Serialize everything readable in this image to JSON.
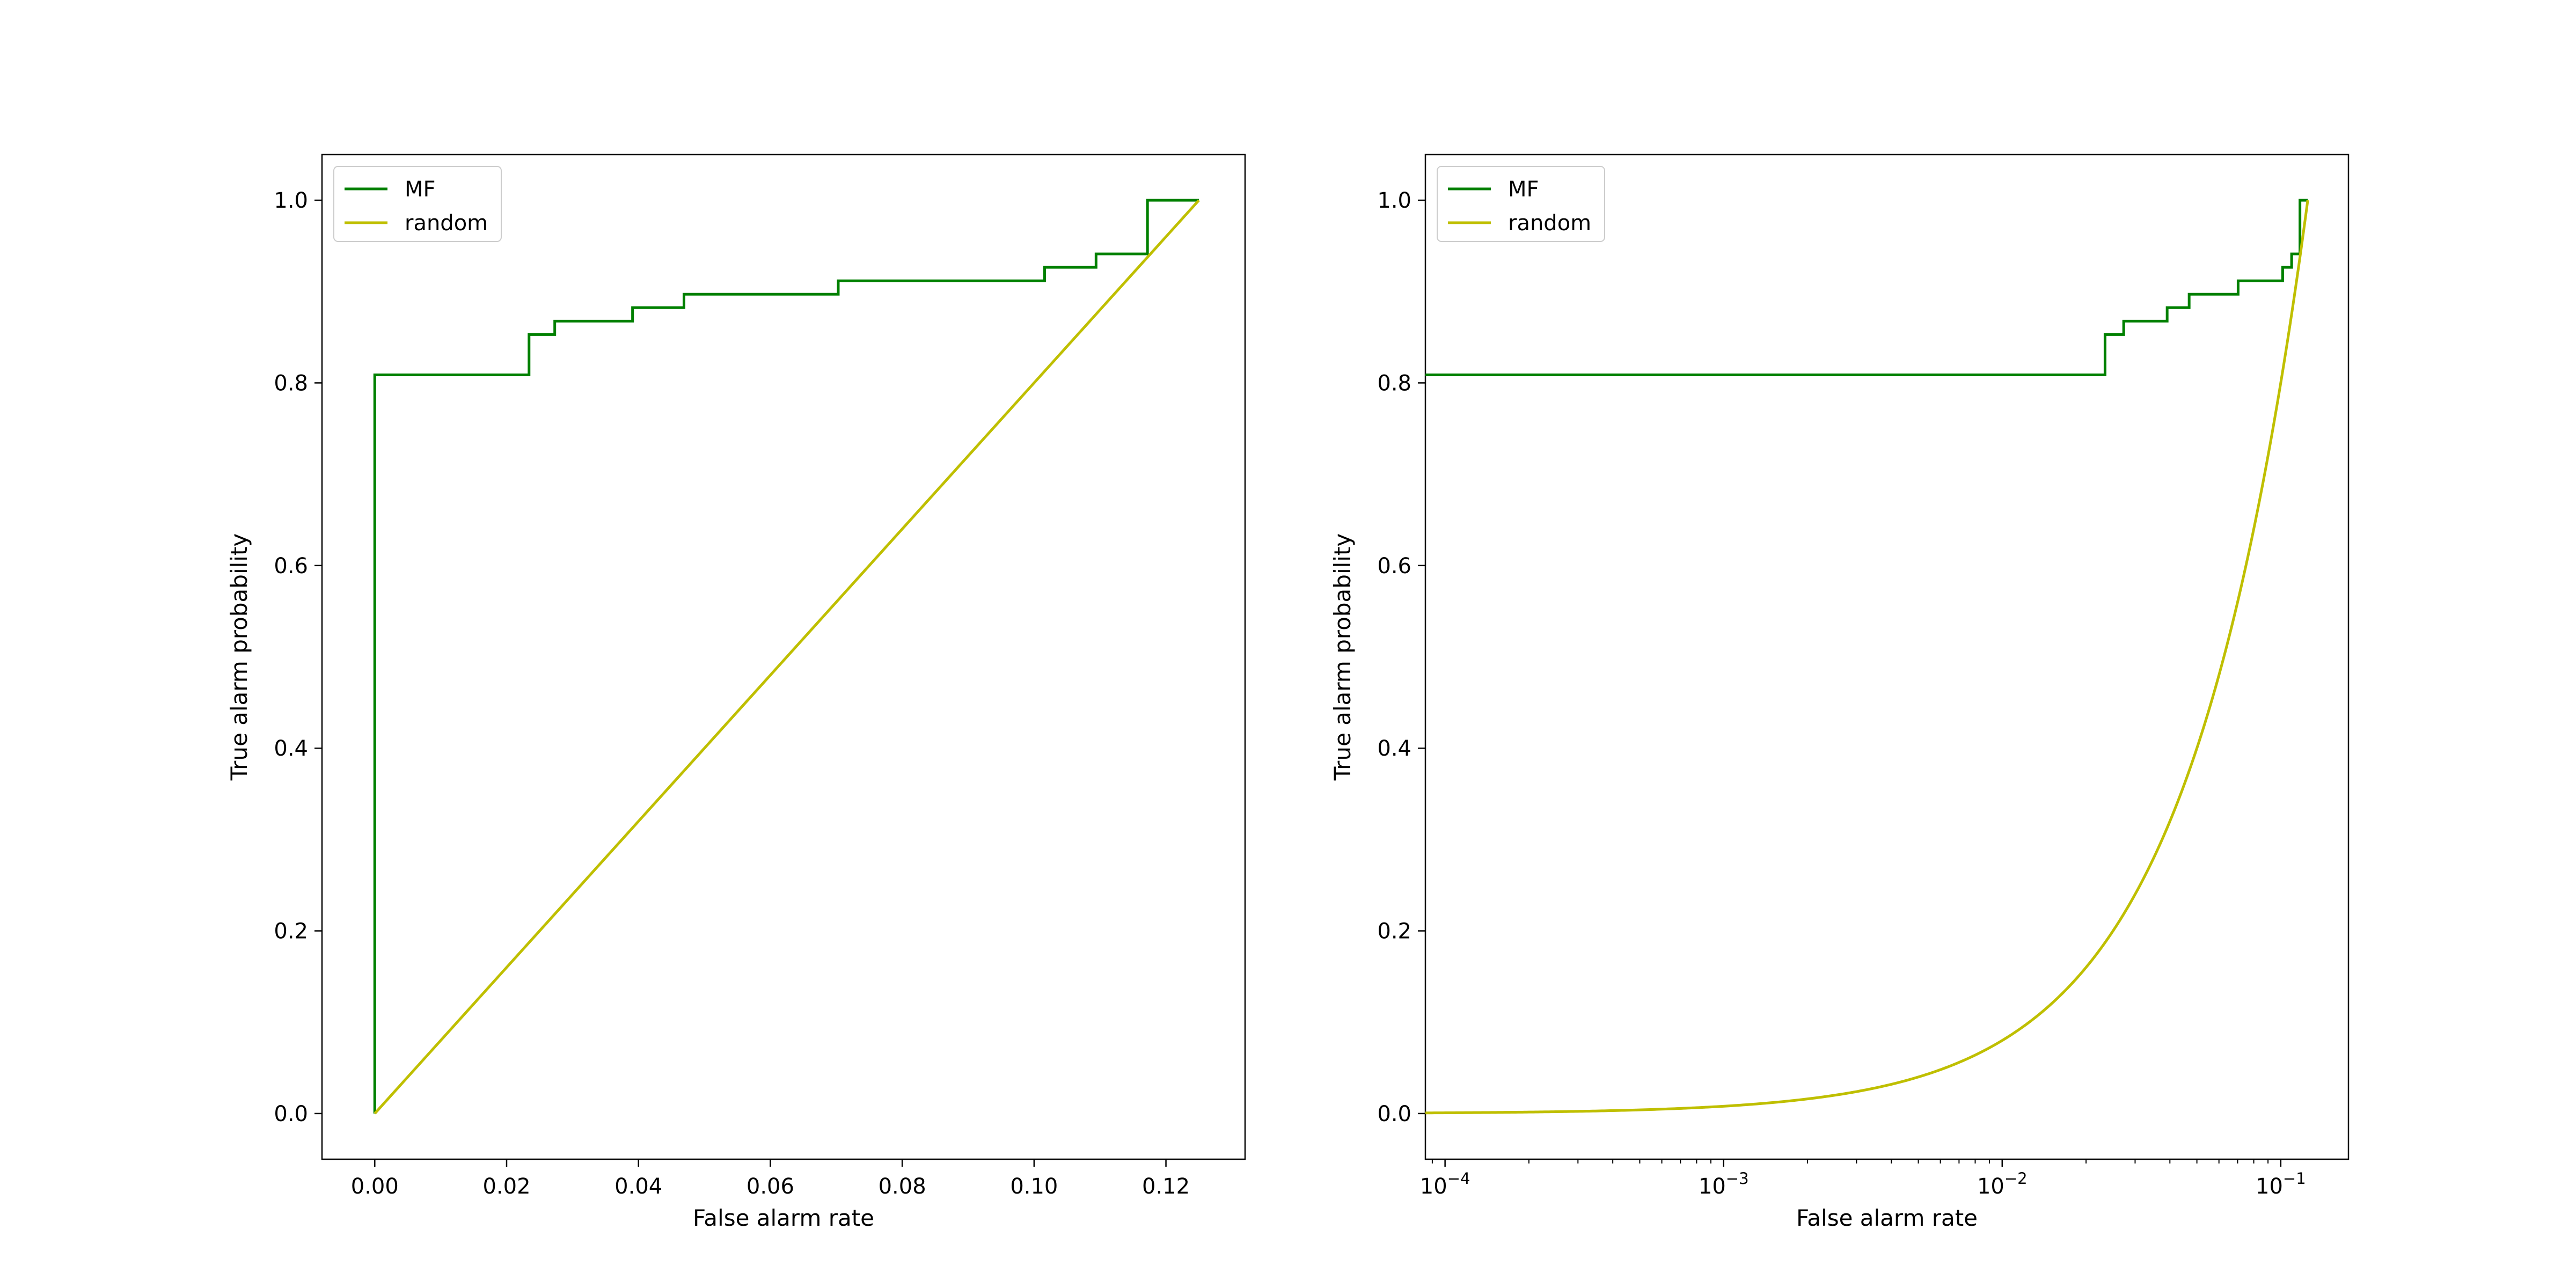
{
  "figure": {
    "background": "#ffffff"
  },
  "chart_data": [
    {
      "type": "line",
      "xscale": "linear",
      "xlabel": "False alarm rate",
      "ylabel": "True alarm probability",
      "xlim": [
        -0.008,
        0.132
      ],
      "ylim": [
        -0.05,
        1.05
      ],
      "xticks": [
        0.0,
        0.02,
        0.04,
        0.06,
        0.08,
        0.1,
        0.12
      ],
      "xtick_labels": [
        "0.00",
        "0.02",
        "0.04",
        "0.06",
        "0.08",
        "0.10",
        "0.12"
      ],
      "yticks": [
        0.0,
        0.2,
        0.4,
        0.6,
        0.8,
        1.0
      ],
      "ytick_labels": [
        "0.0",
        "0.2",
        "0.4",
        "0.6",
        "0.8",
        "1.0"
      ],
      "legend": {
        "position": "upper-left",
        "entries": [
          "MF",
          "random"
        ]
      },
      "grid": false,
      "series": [
        {
          "name": "MF",
          "color": "#008000",
          "style": "step",
          "points": [
            [
              0.0,
              0.0
            ],
            [
              0.0,
              0.8088
            ],
            [
              0.0234,
              0.8088
            ],
            [
              0.0234,
              0.8529
            ],
            [
              0.0273,
              0.8529
            ],
            [
              0.0273,
              0.8676
            ],
            [
              0.0391,
              0.8676
            ],
            [
              0.0391,
              0.8824
            ],
            [
              0.0469,
              0.8824
            ],
            [
              0.0469,
              0.8971
            ],
            [
              0.0703,
              0.8971
            ],
            [
              0.0703,
              0.9118
            ],
            [
              0.1016,
              0.9118
            ],
            [
              0.1016,
              0.9265
            ],
            [
              0.1094,
              0.9265
            ],
            [
              0.1094,
              0.9412
            ],
            [
              0.1172,
              0.9412
            ],
            [
              0.1172,
              1.0
            ],
            [
              0.125,
              1.0
            ]
          ]
        },
        {
          "name": "random",
          "color": "#bfbf00",
          "style": "line",
          "points": [
            [
              0.0,
              0.0
            ],
            [
              0.125,
              1.0
            ]
          ]
        }
      ]
    },
    {
      "type": "line",
      "xscale": "log",
      "xlabel": "False alarm rate",
      "ylabel": "True alarm probability",
      "xlim": [
        8.5e-05,
        0.175
      ],
      "ylim": [
        -0.05,
        1.05
      ],
      "xticks": [
        0.0001,
        0.001,
        0.01,
        0.1
      ],
      "xtick_labels": [
        {
          "base": "10",
          "exp": "−4"
        },
        {
          "base": "10",
          "exp": "−3"
        },
        {
          "base": "10",
          "exp": "−2"
        },
        {
          "base": "10",
          "exp": "−1"
        }
      ],
      "yticks": [
        0.0,
        0.2,
        0.4,
        0.6,
        0.8,
        1.0
      ],
      "ytick_labels": [
        "0.0",
        "0.2",
        "0.4",
        "0.6",
        "0.8",
        "1.0"
      ],
      "legend": {
        "position": "upper-left",
        "entries": [
          "MF",
          "random"
        ]
      },
      "grid": false,
      "series": [
        {
          "name": "MF",
          "color": "#008000",
          "style": "step",
          "points": [
            [
              8.5e-05,
              0.8088
            ],
            [
              0.0234,
              0.8088
            ],
            [
              0.0234,
              0.8529
            ],
            [
              0.0273,
              0.8529
            ],
            [
              0.0273,
              0.8676
            ],
            [
              0.0391,
              0.8676
            ],
            [
              0.0391,
              0.8824
            ],
            [
              0.0469,
              0.8824
            ],
            [
              0.0469,
              0.8971
            ],
            [
              0.0703,
              0.8971
            ],
            [
              0.0703,
              0.9118
            ],
            [
              0.1016,
              0.9118
            ],
            [
              0.1016,
              0.9265
            ],
            [
              0.1094,
              0.9265
            ],
            [
              0.1094,
              0.9412
            ],
            [
              0.1172,
              0.9412
            ],
            [
              0.1172,
              1.0
            ],
            [
              0.125,
              1.0
            ]
          ]
        },
        {
          "name": "random",
          "color": "#bfbf00",
          "style": "line",
          "function": "y = x / 0.125",
          "x_range": [
            8.5e-05,
            0.125
          ]
        }
      ]
    }
  ]
}
